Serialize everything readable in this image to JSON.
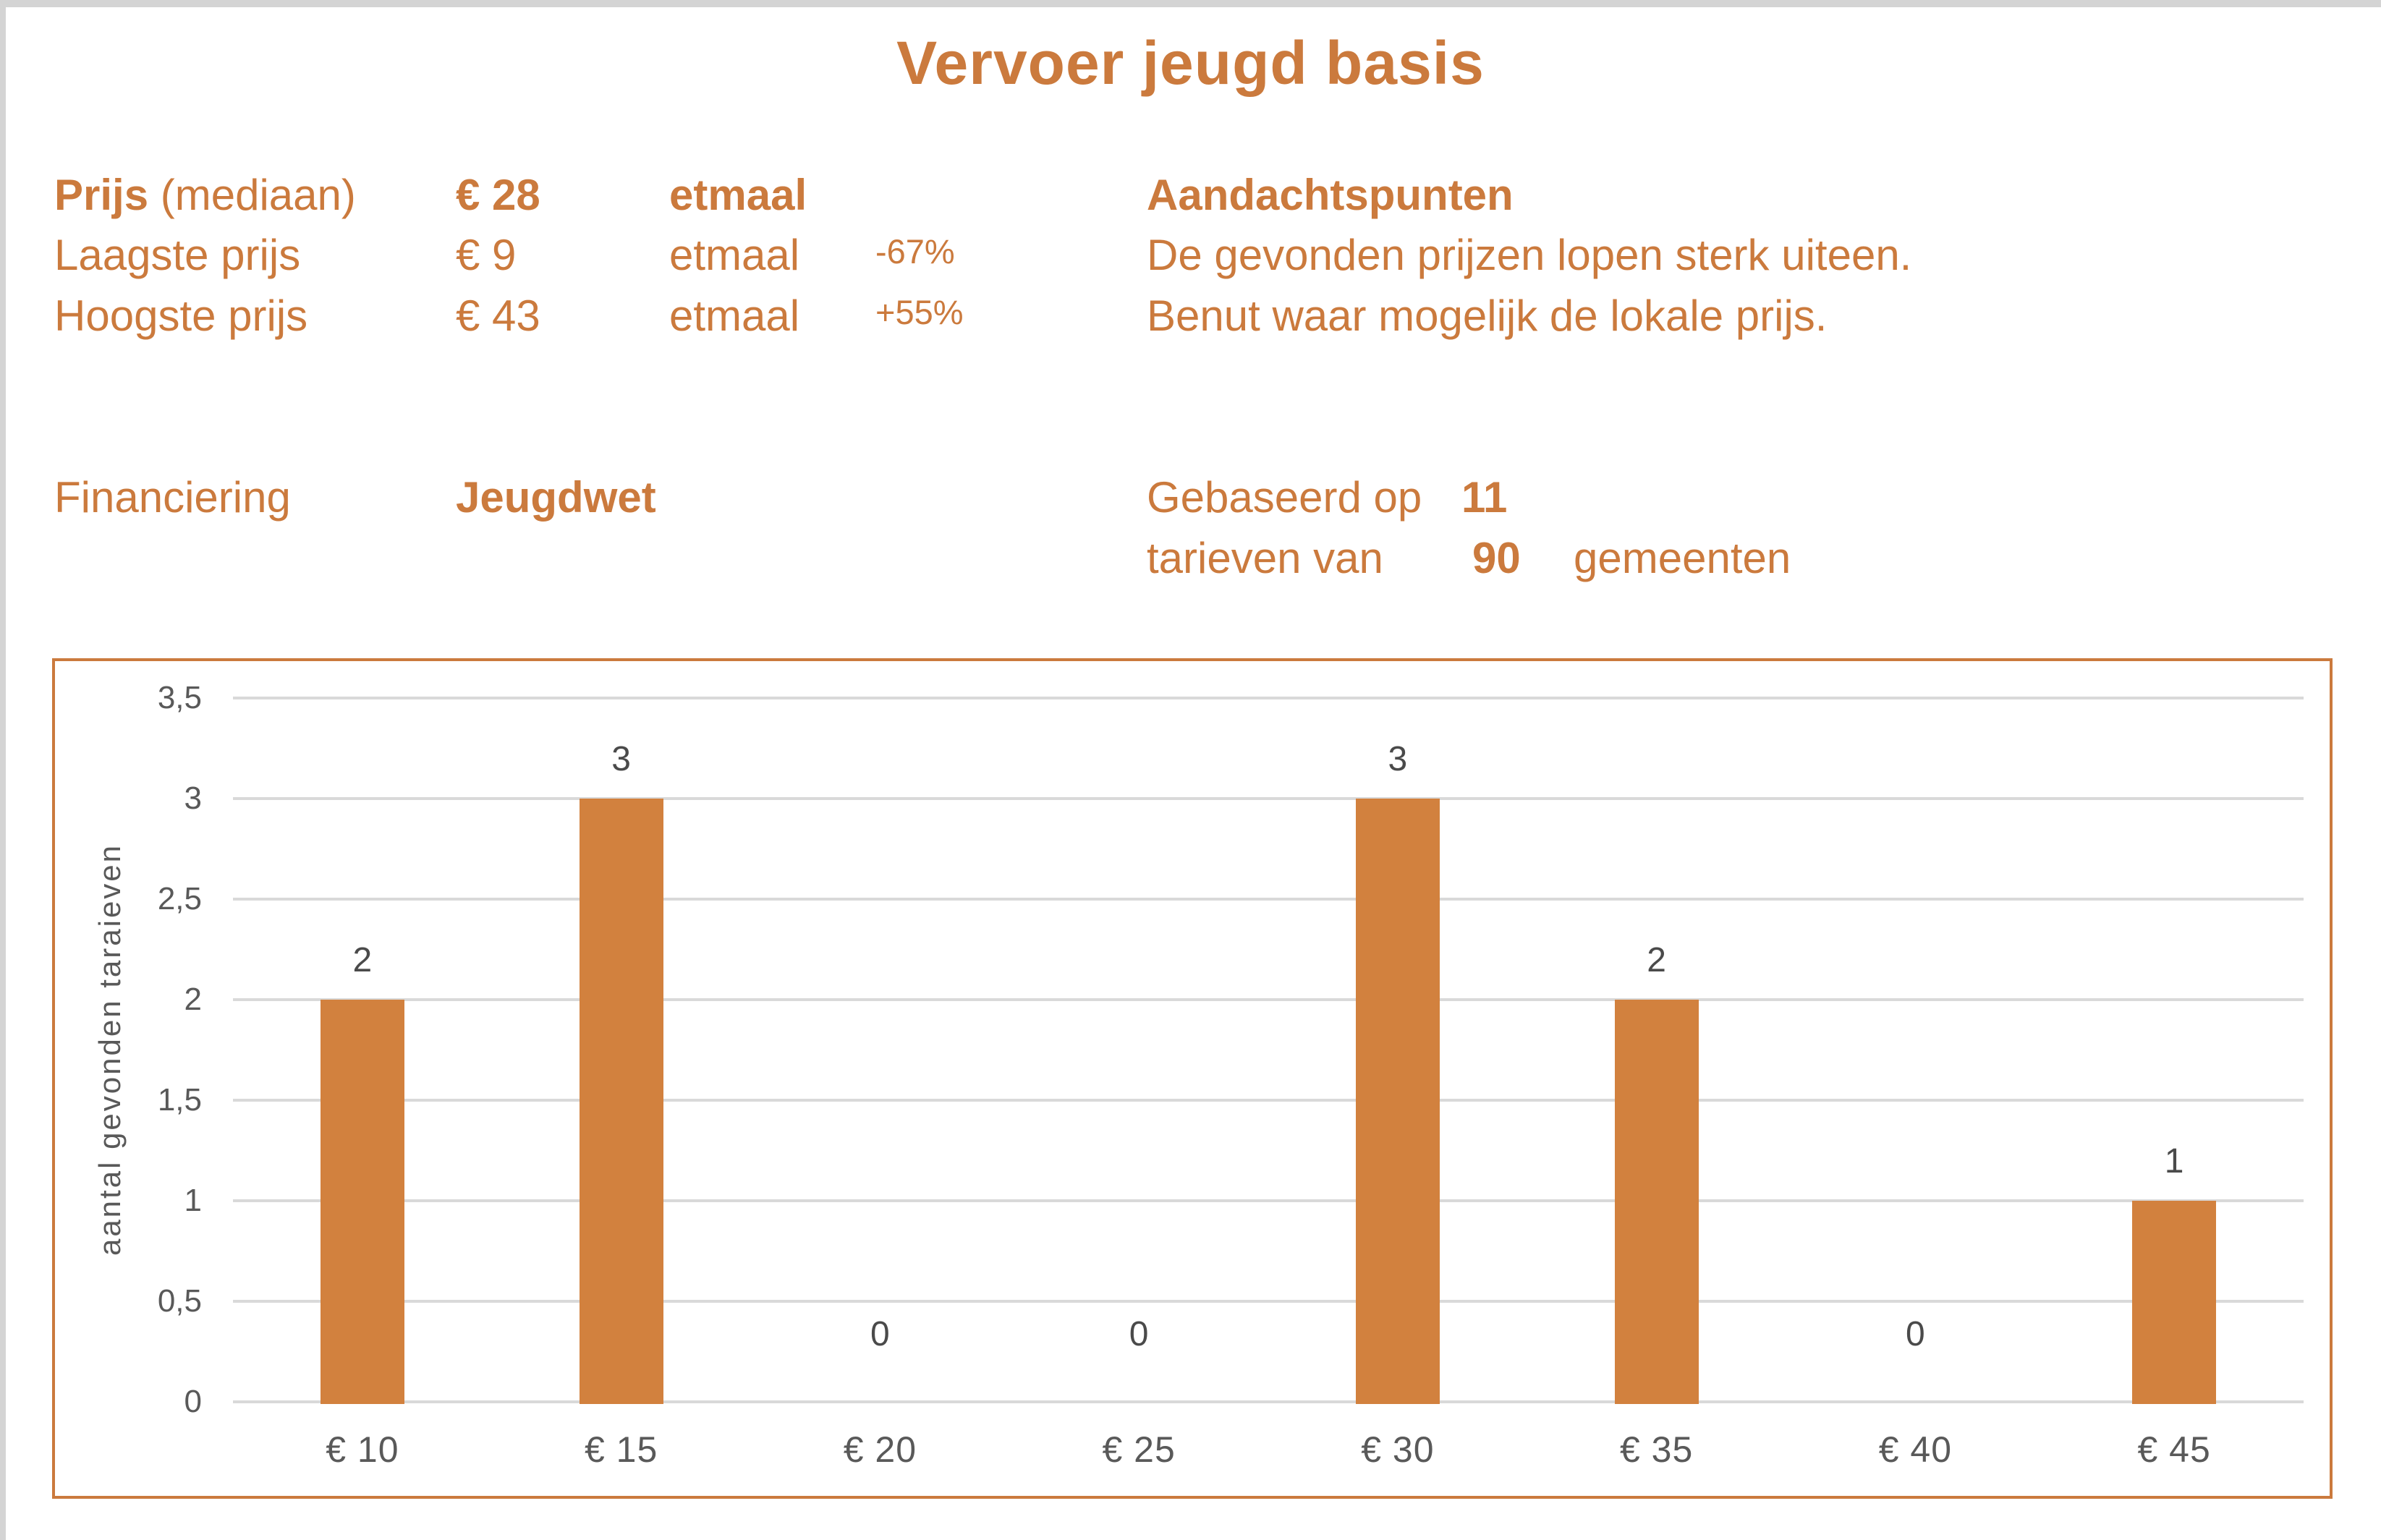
{
  "page": {
    "title": "Vervoer jeugd basis"
  },
  "colors": {
    "accent": "#CB7A3D",
    "bar": "#D2813E",
    "gridline": "#D9D9D9",
    "axis_text": "#595959",
    "window_edge": "#D4D4D4"
  },
  "stats": {
    "rows": [
      {
        "label_bold": "Prijs",
        "label_rest": " (mediaan)",
        "value": "€ 28",
        "unit": "etmaal",
        "pct": ""
      },
      {
        "label": "Laagste prijs",
        "value": "€ 9",
        "unit": "etmaal",
        "pct": "-67%"
      },
      {
        "label": "Hoogste prijs",
        "value": "€ 43",
        "unit": "etmaal",
        "pct": "+55%"
      }
    ]
  },
  "aandachtspunten": {
    "heading": "Aandachtspunten",
    "lines": [
      "De gevonden prijzen lopen sterk uiteen.",
      "Benut waar mogelijk de lokale prijs."
    ]
  },
  "financiering": {
    "label": "Financiering",
    "value": "Jeugdwet"
  },
  "basis": {
    "line1_prefix": "Gebaseerd op",
    "count_tarieven": "11",
    "line2_prefix": "tarieven van",
    "count_gemeenten": "90",
    "line2_suffix": "gemeenten"
  },
  "chart_data": {
    "type": "bar",
    "categories": [
      "€ 10",
      "€ 15",
      "€ 20",
      "€ 25",
      "€ 30",
      "€ 35",
      "€ 40",
      "€ 45"
    ],
    "values": [
      2,
      3,
      0,
      0,
      3,
      2,
      0,
      1
    ],
    "data_labels": [
      "2",
      "3",
      "0",
      "0",
      "3",
      "2",
      "0",
      "1"
    ],
    "title": "",
    "xlabel": "",
    "ylabel": "aantal gevonden taraieven",
    "ylim": [
      0,
      3.5
    ],
    "ytick_step": 0.5,
    "ytick_labels": [
      "0",
      "0,5",
      "1",
      "1,5",
      "2",
      "2,5",
      "3",
      "3,5"
    ],
    "grid": true,
    "legend": "none",
    "bar_color": "#D2813E"
  }
}
